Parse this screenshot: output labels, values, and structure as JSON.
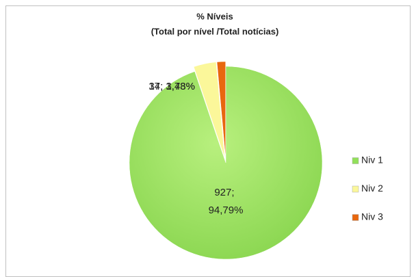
{
  "chart_data": {
    "type": "pie",
    "title": "% Níveis",
    "subtitle": "(Total  por nível /Total notícias)",
    "categories": [
      "Niv 1",
      "Niv 2",
      "Niv 3"
    ],
    "values": [
      927,
      37,
      14
    ],
    "value_labels": [
      "927; 94,79%",
      "37; 3,78%",
      "14; 1,43%"
    ],
    "colors": [
      "#92e05a",
      "#fbf79a",
      "#e8670f"
    ],
    "legend": "right"
  }
}
